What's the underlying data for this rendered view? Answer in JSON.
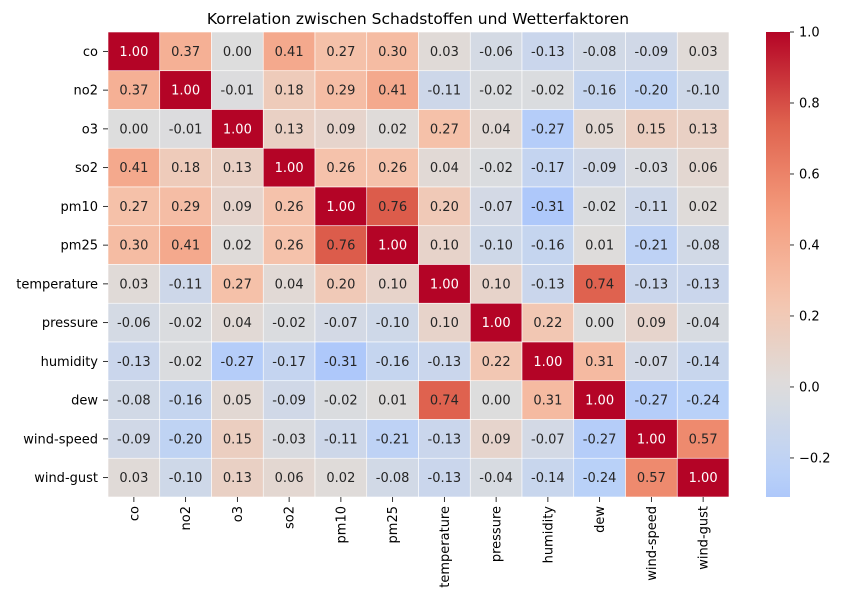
{
  "chart_data": {
    "type": "heatmap",
    "title": "Korrelation zwischen Schadstoffen und Wetterfaktoren",
    "labels": [
      "co",
      "no2",
      "o3",
      "so2",
      "pm10",
      "pm25",
      "temperature",
      "pressure",
      "humidity",
      "dew",
      "wind-speed",
      "wind-gust"
    ],
    "matrix": [
      [
        1.0,
        0.37,
        0.0,
        0.41,
        0.27,
        0.3,
        0.03,
        -0.06,
        -0.13,
        -0.08,
        -0.09,
        0.03
      ],
      [
        0.37,
        1.0,
        -0.01,
        0.18,
        0.29,
        0.41,
        -0.11,
        -0.02,
        -0.02,
        -0.16,
        -0.2,
        -0.1
      ],
      [
        0.0,
        -0.01,
        1.0,
        0.13,
        0.09,
        0.02,
        0.27,
        0.04,
        -0.27,
        0.05,
        0.15,
        0.13
      ],
      [
        0.41,
        0.18,
        0.13,
        1.0,
        0.26,
        0.26,
        0.04,
        -0.02,
        -0.17,
        -0.09,
        -0.03,
        0.06
      ],
      [
        0.27,
        0.29,
        0.09,
        0.26,
        1.0,
        0.76,
        0.2,
        -0.07,
        -0.31,
        -0.02,
        -0.11,
        0.02
      ],
      [
        0.3,
        0.41,
        0.02,
        0.26,
        0.76,
        1.0,
        0.1,
        -0.1,
        -0.16,
        0.01,
        -0.21,
        -0.08
      ],
      [
        0.03,
        -0.11,
        0.27,
        0.04,
        0.2,
        0.1,
        1.0,
        0.1,
        -0.13,
        0.74,
        -0.13,
        -0.13
      ],
      [
        -0.06,
        -0.02,
        0.04,
        -0.02,
        -0.07,
        -0.1,
        0.1,
        1.0,
        0.22,
        -0.0,
        0.09,
        -0.04
      ],
      [
        -0.13,
        -0.02,
        -0.27,
        -0.17,
        -0.31,
        -0.16,
        -0.13,
        0.22,
        1.0,
        0.31,
        -0.07,
        -0.14
      ],
      [
        -0.08,
        -0.16,
        0.05,
        -0.09,
        -0.02,
        0.01,
        0.74,
        -0.0,
        0.31,
        1.0,
        -0.27,
        -0.24
      ],
      [
        -0.09,
        -0.2,
        0.15,
        -0.03,
        -0.11,
        -0.21,
        -0.13,
        0.09,
        -0.07,
        -0.27,
        1.0,
        0.57
      ],
      [
        0.03,
        -0.1,
        0.13,
        0.06,
        0.02,
        -0.08,
        -0.13,
        -0.04,
        -0.14,
        -0.24,
        0.57,
        1.0
      ]
    ],
    "colormap": "coolwarm",
    "center": 0.0,
    "vmin": -0.31,
    "vmax": 1.0,
    "colorbar_ticks": [
      "1.0",
      "0.8",
      "0.6",
      "0.4",
      "0.2",
      "0.0",
      "−0.2"
    ],
    "colorbar_tick_values": [
      1.0,
      0.8,
      0.6,
      0.4,
      0.2,
      0.0,
      -0.2
    ],
    "legend_position": "right",
    "value_format": "2 decimals"
  }
}
